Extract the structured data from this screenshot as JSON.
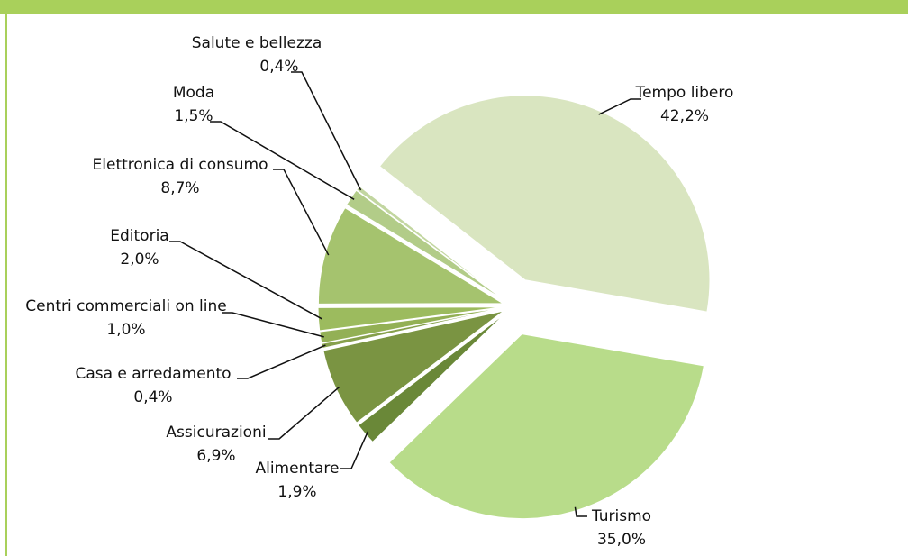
{
  "chart_data": {
    "type": "pie",
    "categories": [
      "Tempo libero",
      "Turismo",
      "Alimentare",
      "Assicurazioni",
      "Casa e arredamento",
      "Centri commerciali on line",
      "Editoria",
      "Elettronica di consumo",
      "Moda",
      "Salute e bellezza"
    ],
    "values": [
      42.2,
      35.0,
      1.9,
      6.9,
      0.4,
      1.0,
      2.0,
      8.7,
      1.5,
      0.4
    ],
    "value_labels": [
      "42,2%",
      "35,0%",
      "1,9%",
      "6,9%",
      "0,4%",
      "1,0%",
      "2,0%",
      "8,7%",
      "1,5%",
      "0,4%"
    ],
    "colors": [
      "#d9e5c0",
      "#b8dc8a",
      "#6a8838",
      "#7a9442",
      "#86a04c",
      "#93b055",
      "#9cbb5e",
      "#a5c36e",
      "#b2cc88",
      "#c2d6a0"
    ]
  }
}
